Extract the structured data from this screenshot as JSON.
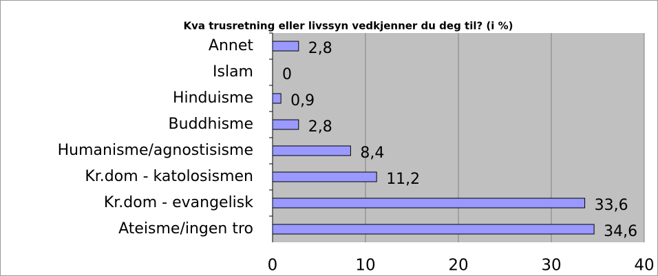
{
  "chart_data": {
    "type": "bar",
    "orientation": "horizontal",
    "title": "Kva trusretning eller livssyn vedkjenner du deg til? (i %)",
    "categories": [
      "Annet",
      "Islam",
      "Hinduisme",
      "Buddhisme",
      "Humanisme/agnostisisme",
      "Kr.dom - katolosismen",
      "Kr.dom - evangelisk",
      "Ateisme/ingen tro"
    ],
    "values": [
      2.8,
      0,
      0.9,
      2.8,
      8.4,
      11.2,
      33.6,
      34.6
    ],
    "value_labels": [
      "2,8",
      "0",
      "0,9",
      "2,8",
      "8,4",
      "11,2",
      "33,6",
      "34,6"
    ],
    "color": "#9999ff",
    "xlim": [
      0,
      40
    ],
    "xticks": [
      0,
      10,
      20,
      30,
      40
    ],
    "grid": true
  }
}
